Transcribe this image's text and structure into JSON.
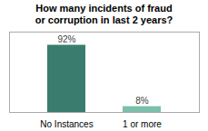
{
  "chart_data": {
    "type": "bar",
    "title": "How many incidents of fraud\nor corruption in last 2 years?",
    "categories": [
      "No Instances",
      "1 or more"
    ],
    "values": [
      92,
      8
    ],
    "value_labels": [
      "92%",
      "8%"
    ],
    "colors": [
      "#3a7d6e",
      "#7cbfaa"
    ],
    "ylim": [
      0,
      110
    ],
    "data_labels": true,
    "tick_labels": "x",
    "grid": false
  }
}
